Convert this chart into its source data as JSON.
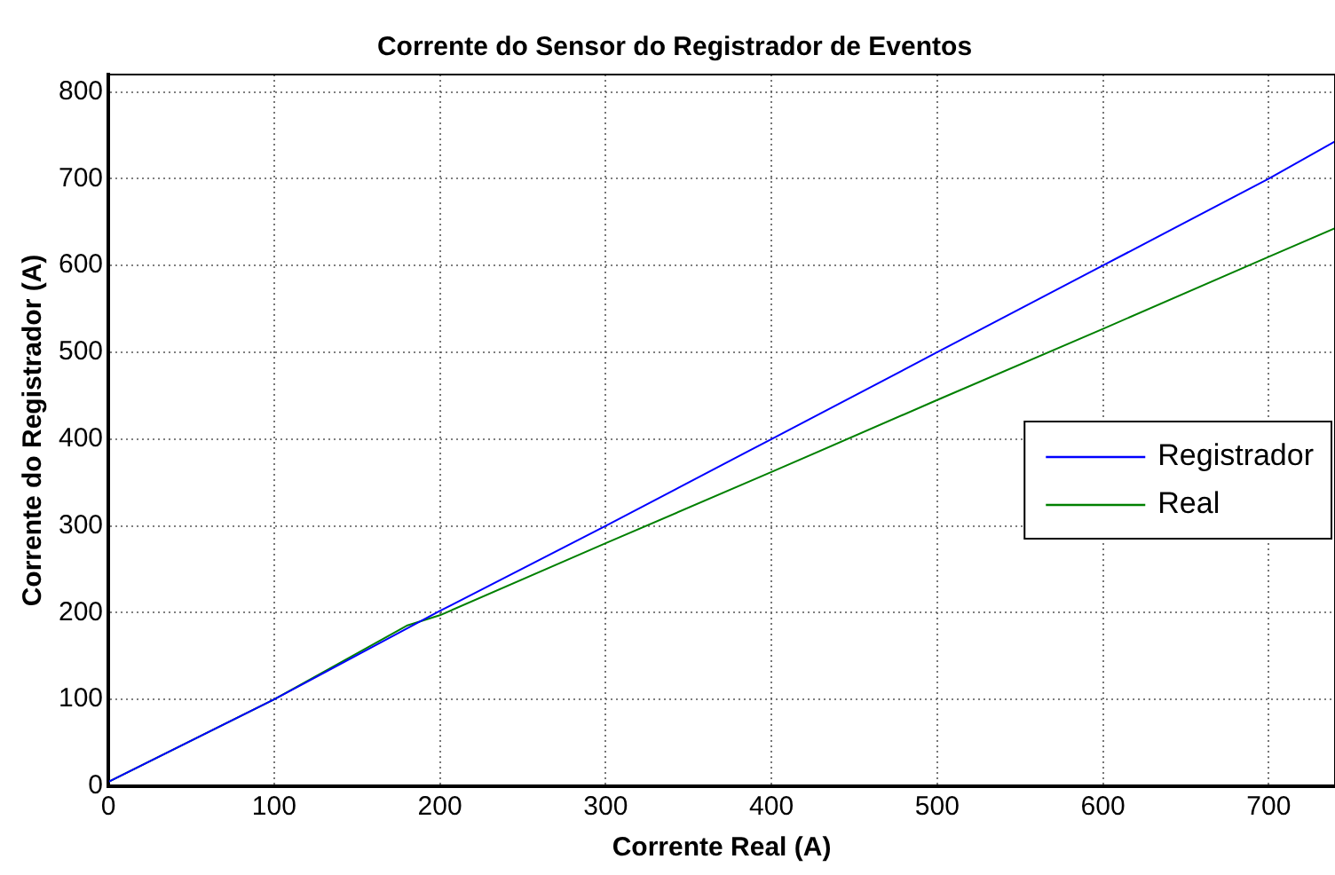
{
  "chart_data": {
    "type": "line",
    "title": "Corrente do Sensor do Registrador de Eventos",
    "xlabel": "Corrente Real (A)",
    "ylabel": "Corrente do Registrador (A)",
    "xlim": [
      0,
      740
    ],
    "xticks": [
      0,
      100,
      200,
      300,
      400,
      500,
      600,
      700
    ],
    "ylim": [
      0,
      820
    ],
    "yticks": [
      0,
      100,
      200,
      300,
      400,
      500,
      600,
      700,
      800
    ],
    "grid": true,
    "legend": "right",
    "line_style": "solid",
    "marker": "none",
    "series": [
      {
        "name": "Registrador",
        "color": "#0000ff",
        "x": [
          0,
          100,
          200,
          300,
          400,
          500,
          600,
          700,
          740
        ],
        "values": [
          5,
          100,
          202,
          300,
          400,
          500,
          600,
          700,
          743
        ]
      },
      {
        "name": "Real",
        "color": "#008000",
        "x": [
          0,
          100,
          180,
          200,
          300,
          400,
          500,
          600,
          700,
          740
        ],
        "values": [
          5,
          100,
          185,
          197,
          280,
          362,
          445,
          527,
          610,
          643
        ]
      }
    ]
  }
}
